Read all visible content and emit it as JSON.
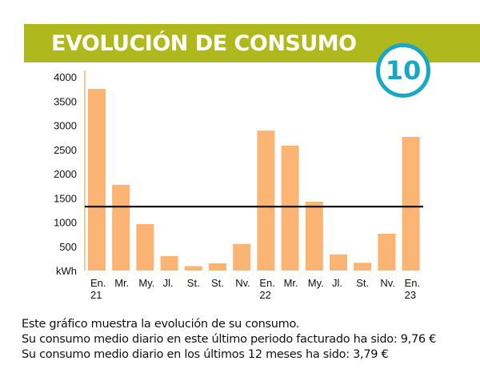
{
  "header": {
    "title": "EVOLUCIÓN DE CONSUMO",
    "badge": "10"
  },
  "chart_data": {
    "type": "bar",
    "ylabel": "kWh",
    "ylim": [
      0,
      4000
    ],
    "yticks": [
      500,
      1000,
      1500,
      2000,
      2500,
      3000,
      3500,
      4000
    ],
    "categories": [
      [
        "En.",
        "21"
      ],
      [
        "Mr.",
        ""
      ],
      [
        "My.",
        ""
      ],
      [
        "Jl.",
        ""
      ],
      [
        "St.",
        ""
      ],
      [
        "St.",
        ""
      ],
      [
        "Nv.",
        ""
      ],
      [
        "En.",
        "22"
      ],
      [
        "Mr.",
        ""
      ],
      [
        "My.",
        ""
      ],
      [
        "Jl.",
        ""
      ],
      [
        "St.",
        ""
      ],
      [
        "Nv.",
        ""
      ],
      [
        "En.",
        "23"
      ]
    ],
    "values": [
      3750,
      1770,
      960,
      300,
      90,
      150,
      550,
      2890,
      2580,
      1420,
      330,
      160,
      760,
      2760
    ],
    "average_line": 1320,
    "bar_color": "#fab473",
    "axis_color": "#fab473",
    "line_color": "#111111"
  },
  "footer": {
    "line1": "Este gráfico muestra la evolución de su consumo.",
    "line2": "Su consumo medio diario en este último periodo facturado ha sido: 9,76 €",
    "line3": "Su consumo medio diario en los últimos 12 meses ha sido: 3,79 €"
  }
}
